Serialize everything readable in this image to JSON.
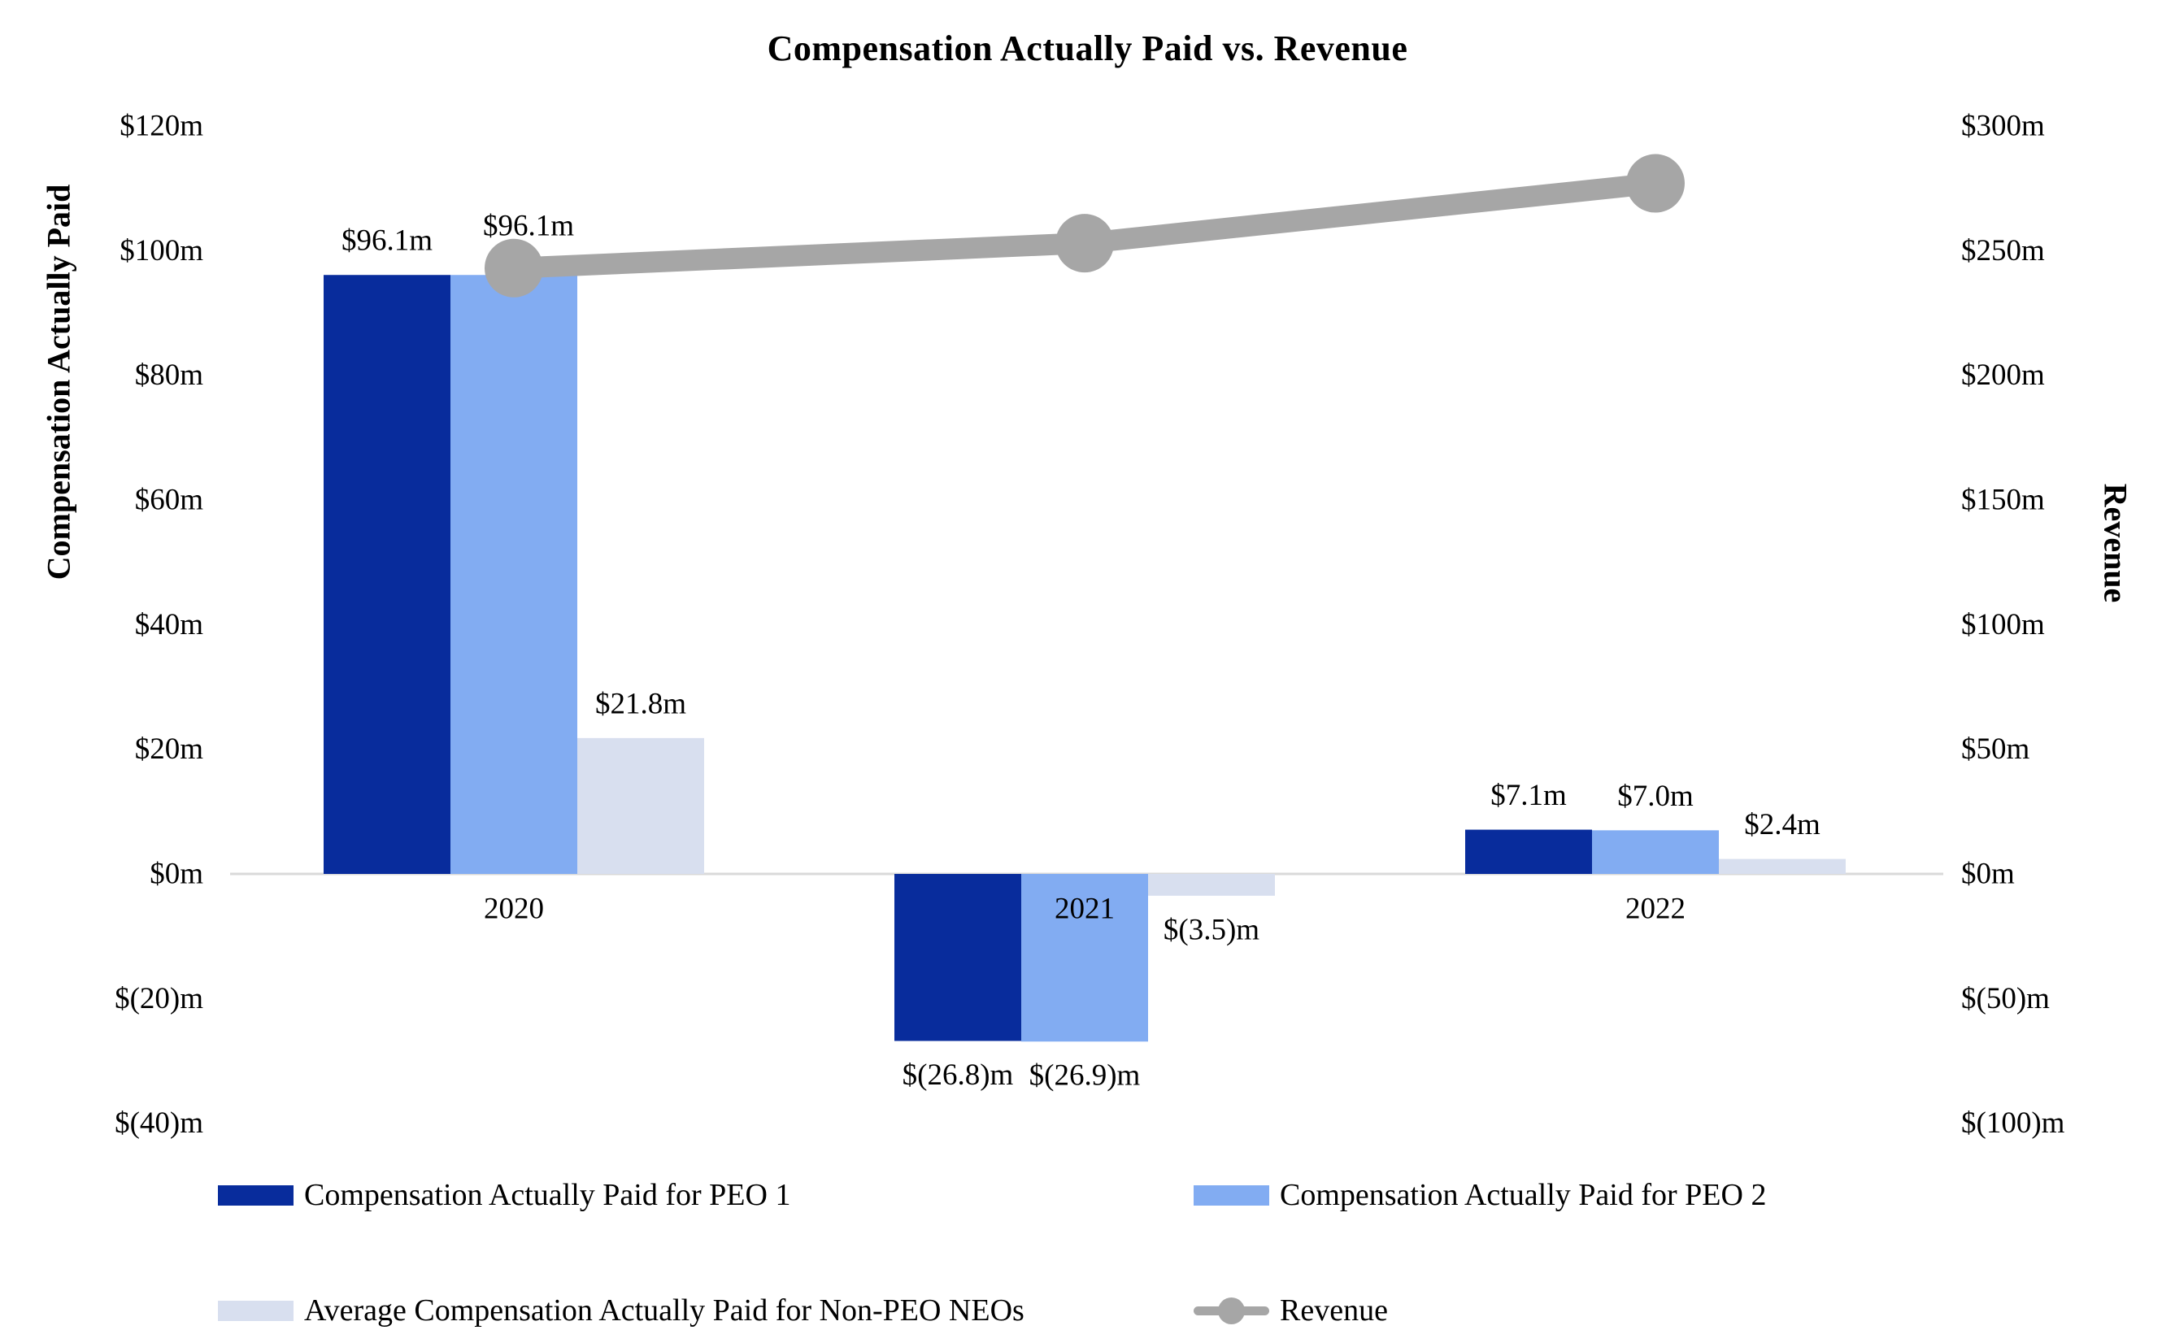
{
  "chart_data": {
    "type": "combo",
    "title": "Compensation Actually Paid vs. Revenue",
    "categories": [
      "2020",
      "2021",
      "2022"
    ],
    "series": [
      {
        "name": "Compensation Actually Paid for PEO 1",
        "type": "bar",
        "axis": "left",
        "color": "#082C9C",
        "values": [
          96.1,
          -26.8,
          7.1
        ],
        "data_labels": [
          "$96.1m",
          "$(26.8)m",
          "$7.1m"
        ]
      },
      {
        "name": "Compensation Actually Paid for PEO 2",
        "type": "bar",
        "axis": "left",
        "color": "#82ACF2",
        "values": [
          96.1,
          -26.9,
          7.0
        ],
        "data_labels": [
          "$96.1m",
          "$(26.9)m",
          "$7.0m"
        ]
      },
      {
        "name": "Average Compensation Actually Paid for Non-PEO NEOs",
        "type": "bar",
        "axis": "left",
        "color": "#D8DFEF",
        "values": [
          21.8,
          -3.5,
          2.4
        ],
        "data_labels": [
          "$21.8m",
          "$(3.5)m",
          "$2.4m"
        ]
      },
      {
        "name": "Revenue",
        "type": "line",
        "axis": "right",
        "color": "#A6A6A6",
        "values": [
          243,
          253,
          277
        ],
        "data_labels": []
      }
    ],
    "left_axis": {
      "title": "Compensation Actually Paid",
      "range": [
        -40,
        120
      ],
      "ticks": [
        {
          "value": 120,
          "label": "$120m"
        },
        {
          "value": 100,
          "label": "$100m"
        },
        {
          "value": 80,
          "label": "$80m"
        },
        {
          "value": 60,
          "label": "$60m"
        },
        {
          "value": 40,
          "label": "$40m"
        },
        {
          "value": 20,
          "label": "$20m"
        },
        {
          "value": 0,
          "label": "$0m"
        },
        {
          "value": -20,
          "label": "$(20)m"
        },
        {
          "value": -40,
          "label": "$(40)m"
        }
      ]
    },
    "right_axis": {
      "title": "Revenue",
      "range": [
        -100,
        300
      ],
      "ticks": [
        {
          "value": 300,
          "label": "$300m"
        },
        {
          "value": 250,
          "label": "$250m"
        },
        {
          "value": 200,
          "label": "$200m"
        },
        {
          "value": 150,
          "label": "$150m"
        },
        {
          "value": 100,
          "label": "$100m"
        },
        {
          "value": 50,
          "label": "$50m"
        },
        {
          "value": 0,
          "label": "$0m"
        },
        {
          "value": -50,
          "label": "$(50)m"
        },
        {
          "value": -100,
          "label": "$(100)m"
        }
      ]
    },
    "grid": false,
    "legend_position": "bottom",
    "axis_line_color": "#D9D9D9",
    "text_color": "#000000",
    "background_color": "#FFFFFF"
  }
}
